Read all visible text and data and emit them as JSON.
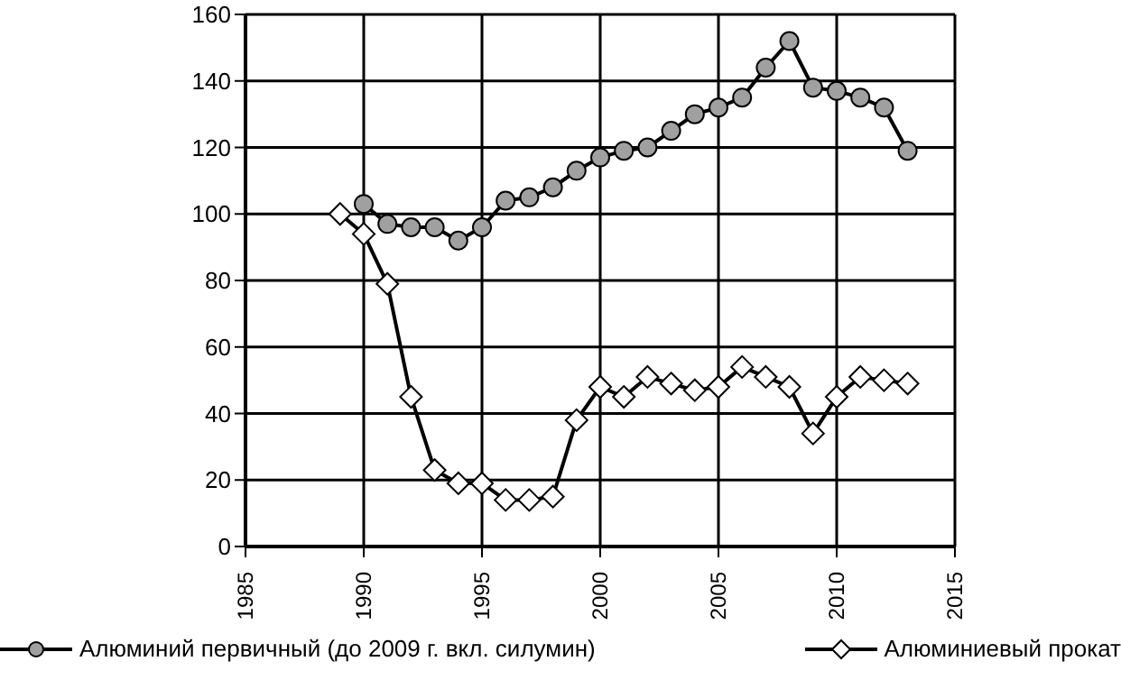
{
  "chart_data": {
    "type": "line",
    "x": [
      1990,
      1991,
      1992,
      1993,
      1994,
      1995,
      1996,
      1997,
      1998,
      1999,
      2000,
      2001,
      2002,
      2003,
      2004,
      2005,
      2006,
      2007,
      2008,
      2009,
      2010,
      2011,
      2012,
      2013
    ],
    "series": [
      {
        "name": "Алюминий первичный (до 2009 г. вкл. силумин)",
        "color": "#000000",
        "marker": "circle",
        "values": [
          103,
          97,
          96,
          96,
          92,
          96,
          104,
          105,
          108,
          113,
          117,
          119,
          120,
          125,
          130,
          132,
          135,
          144,
          152,
          138,
          137,
          135,
          132,
          119
        ]
      },
      {
        "name": "Алюминиевый прокат",
        "color": "#000000",
        "marker": "diamond",
        "x": [
          1989,
          1990,
          1991,
          1992,
          1993,
          1994,
          1995,
          1996,
          1997,
          1998,
          1999,
          2000,
          2001,
          2002,
          2003,
          2004,
          2005,
          2006,
          2007,
          2008,
          2009,
          2010,
          2011,
          2012,
          2013
        ],
        "values": [
          100,
          94,
          79,
          45,
          23,
          19,
          19,
          14,
          14,
          15,
          38,
          48,
          45,
          51,
          49,
          47,
          48,
          54,
          51,
          48,
          34,
          45,
          51,
          50,
          49
        ]
      }
    ],
    "xlim": [
      1985,
      2015
    ],
    "xticks": [
      1985,
      1990,
      1995,
      2000,
      2005,
      2010,
      2015
    ],
    "ylim": [
      0,
      160
    ],
    "yticks": [
      0,
      20,
      40,
      60,
      80,
      100,
      120,
      140,
      160
    ],
    "grid": true,
    "legend": "bottom",
    "line_style": "solid"
  }
}
